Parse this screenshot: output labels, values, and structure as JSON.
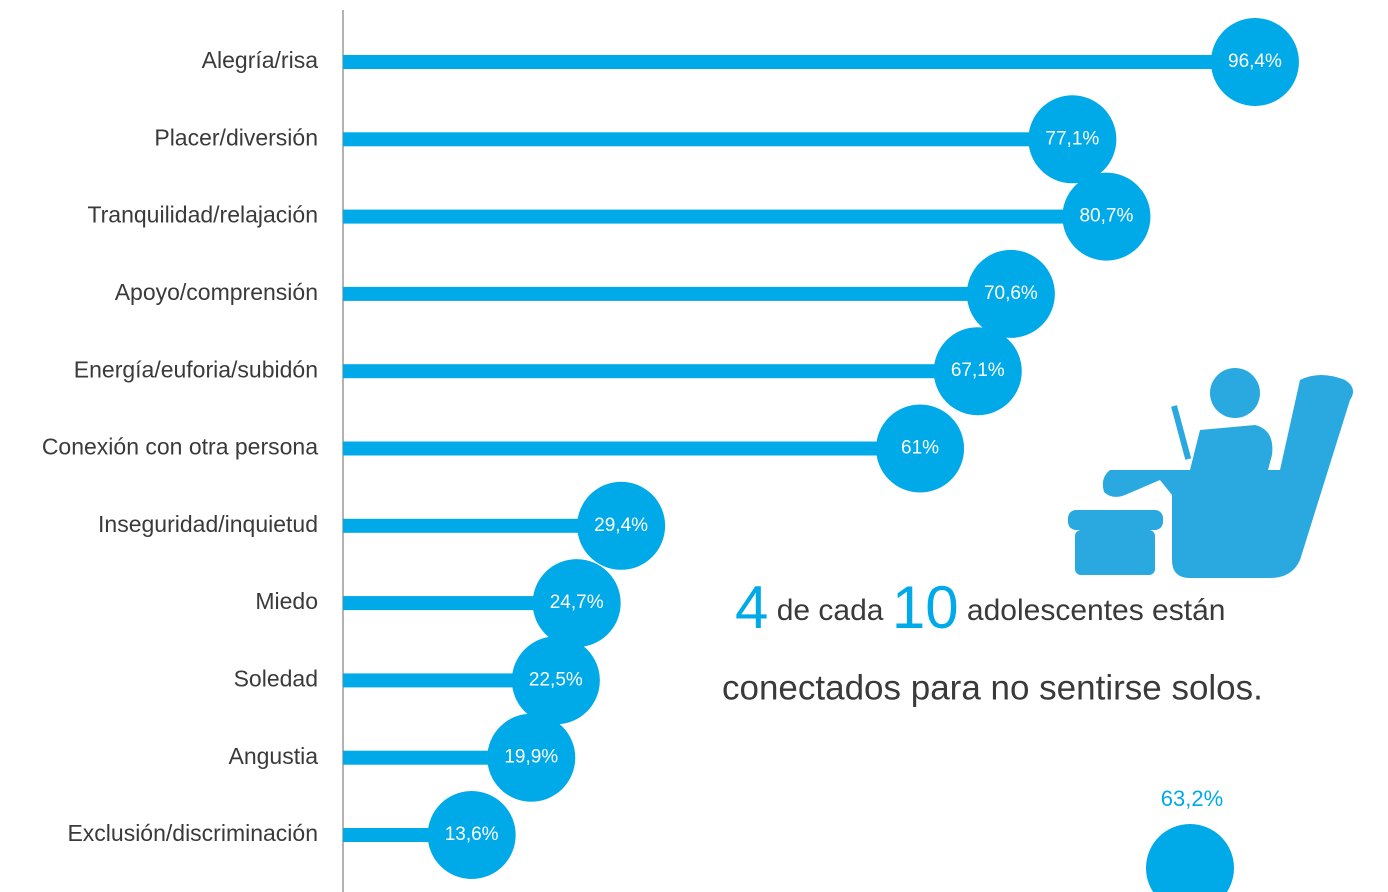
{
  "chart_data": {
    "type": "bar",
    "orientation": "horizontal",
    "color": "#00a9e8",
    "categories": [
      "Alegría/risa",
      "Placer/diversión",
      "Tranquilidad/relajación",
      "Apoyo/comprensión",
      "Energía/euforia/subidón",
      "Conexión con otra persona",
      "Inseguridad/inquietud",
      "Miedo",
      "Soledad",
      "Angustia",
      "Exclusión/discriminación"
    ],
    "values": [
      96.4,
      77.1,
      80.7,
      70.6,
      67.1,
      61,
      29.4,
      24.7,
      22.5,
      19.9,
      13.6
    ],
    "value_labels": [
      "96,4%",
      "77,1%",
      "80,7%",
      "70,6%",
      "67,1%",
      "61%",
      "29,4%",
      "24,7%",
      "22,5%",
      "19,9%",
      "13,6%"
    ],
    "xlim": [
      0,
      100
    ],
    "callout": {
      "number1": "4",
      "text1": "de cada",
      "number2": "10",
      "text2": "adolescentes están",
      "line2": "conectados para no sentirse solos."
    },
    "extra_label": "63,2%"
  }
}
